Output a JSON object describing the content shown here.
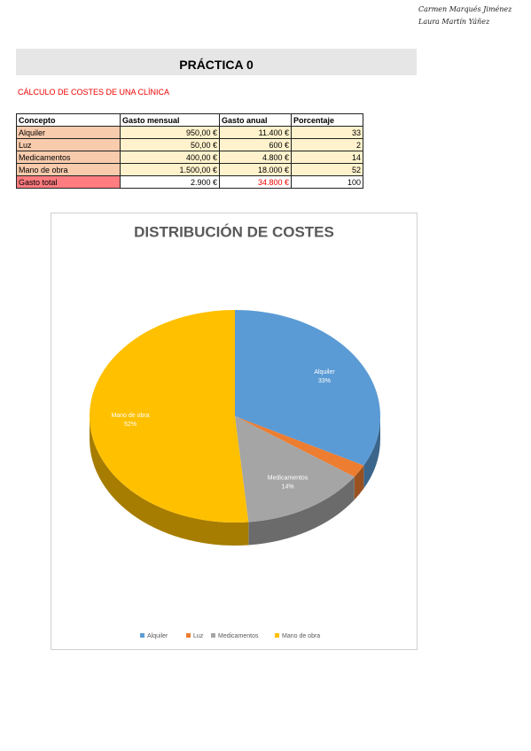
{
  "header": {
    "authors": [
      "Carmen Marqués Jiménez",
      "Laura Martín Yáñez"
    ],
    "title": "PRÁCTICA 0",
    "subtitle": "CÁLCULO DE COSTES DE UNA CLÍNICA"
  },
  "table": {
    "columns": [
      "Concepto",
      "Gasto mensual",
      "Gasto anual",
      "Porcentaje"
    ],
    "rows": [
      [
        "Alquiler",
        "950,00 €",
        "11.400 €",
        33
      ],
      [
        "Luz",
        "50,00 €",
        "600 €",
        2
      ],
      [
        "Medicamentos",
        "400,00 €",
        "4.800 €",
        14
      ],
      [
        "Mano de obra",
        "1.500,00 €",
        "18.000 €",
        52
      ]
    ],
    "total": [
      "Gasto total",
      "2.900 €",
      "34.800 €",
      100
    ]
  },
  "chart_data": {
    "type": "pie",
    "title": "DISTRIBUCIÓN DE COSTES",
    "categories": [
      "Alquiler",
      "Luz",
      "Medicamentos",
      "Mano de obra"
    ],
    "values": [
      33,
      2,
      14,
      52
    ],
    "value_labels": [
      "33%",
      null,
      "14%",
      "52%"
    ],
    "colors": [
      "#5b9bd5",
      "#ed7d31",
      "#a5a5a5",
      "#ffc000"
    ],
    "legend": "bottom"
  }
}
